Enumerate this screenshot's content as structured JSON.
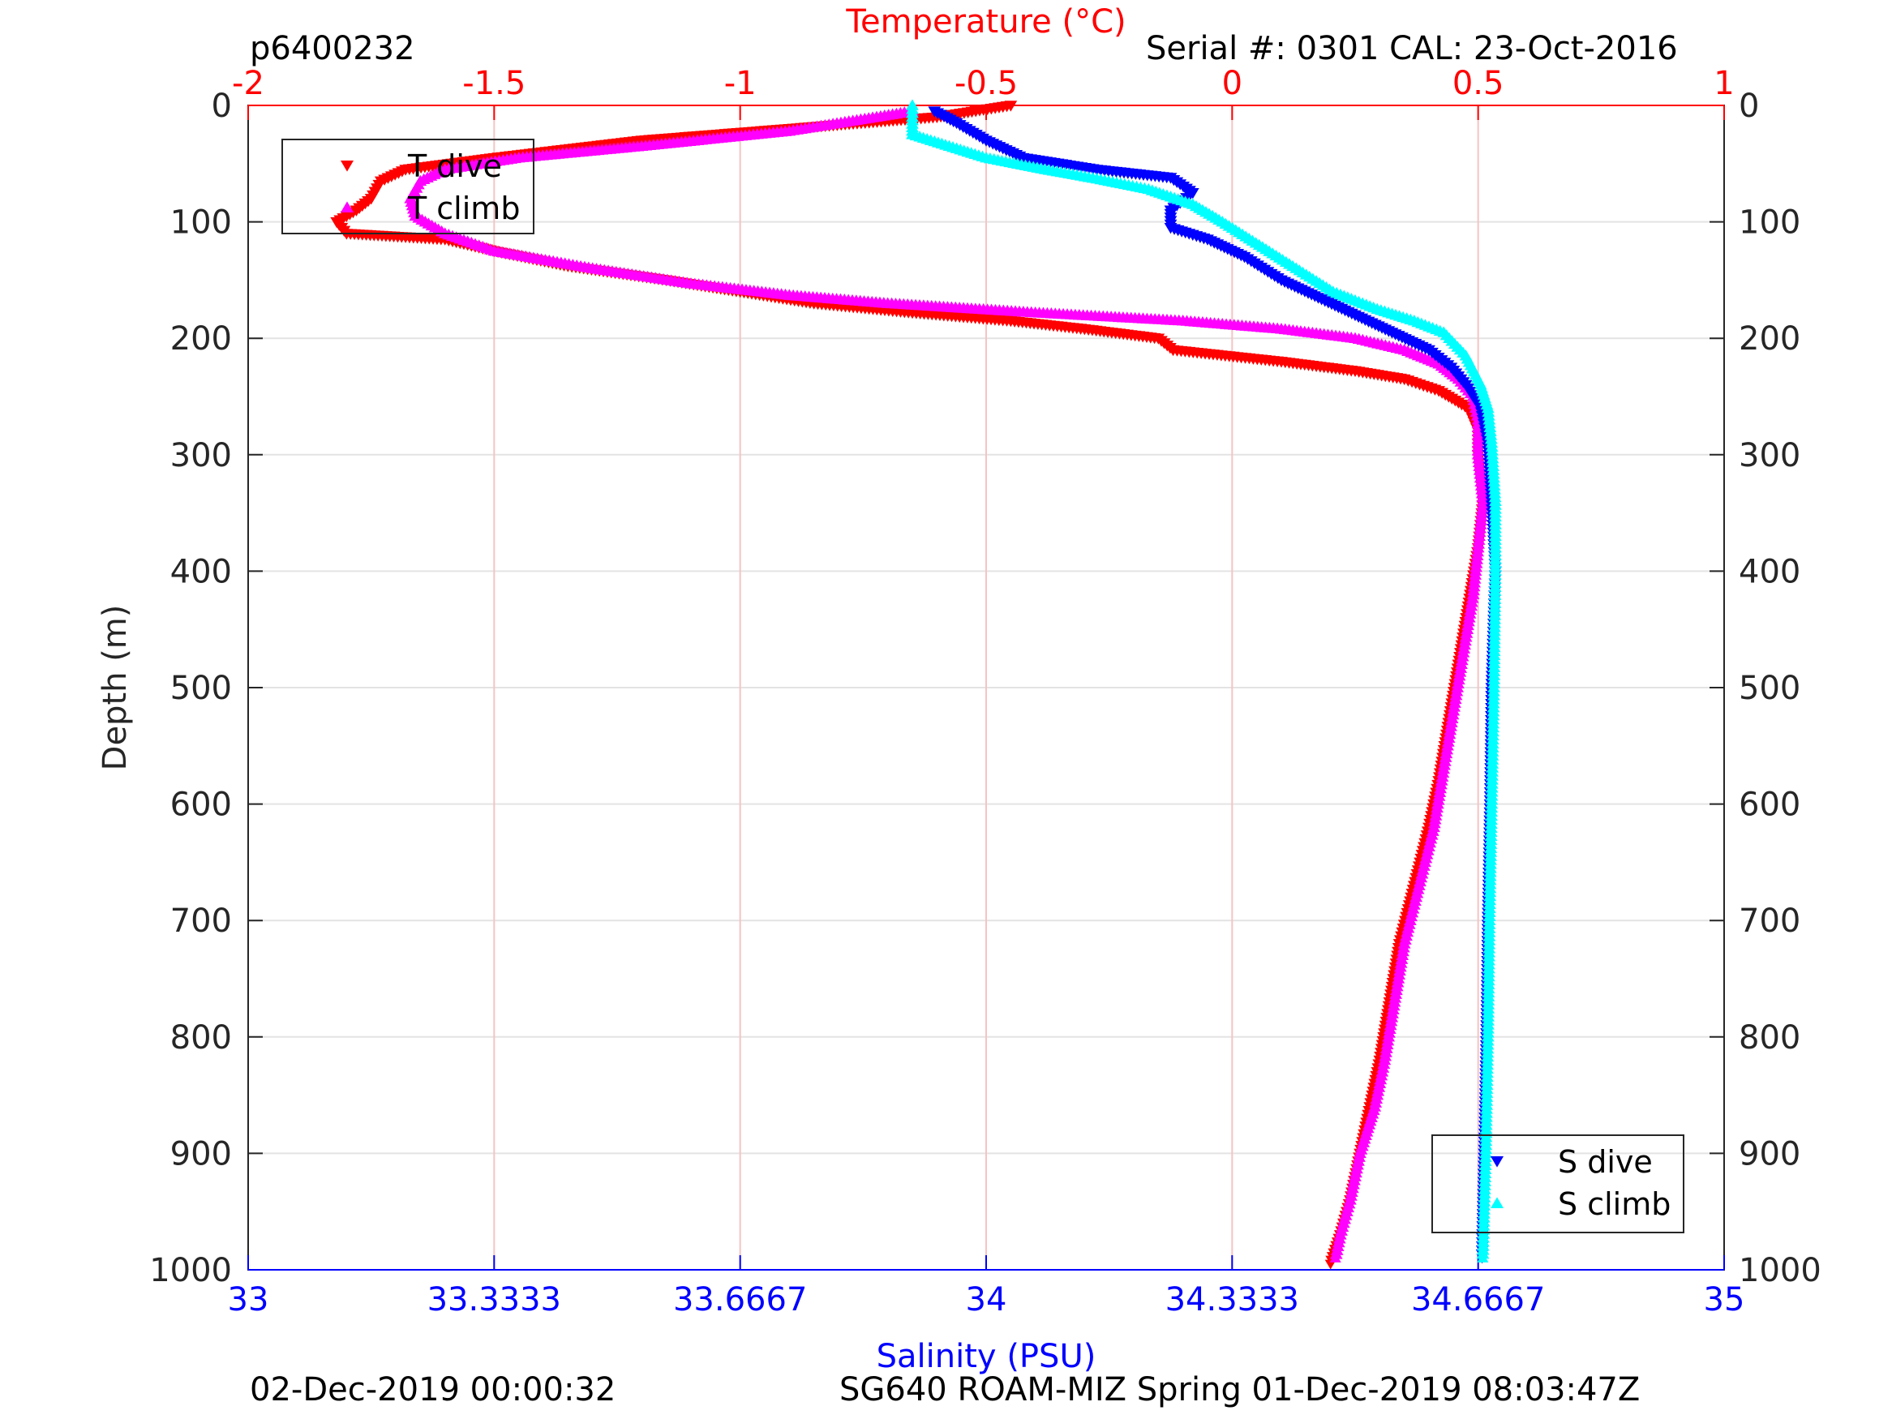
{
  "header": {
    "left_label": "p6400232",
    "right_label": "Serial #: 0301  CAL: 23-Oct-2016"
  },
  "footer": {
    "left_label": "02-Dec-2019 00:00:32",
    "right_label": "SG640 ROAM-MIZ Spring 01-Dec-2019 08:03:47Z"
  },
  "chart_data": {
    "type": "scatter",
    "ylabel": "Depth (m)",
    "ylim": [
      0,
      1000
    ],
    "y_reversed": true,
    "yticks": [
      "0",
      "100",
      "200",
      "300",
      "400",
      "500",
      "600",
      "700",
      "800",
      "900",
      "1000"
    ],
    "ytick_values": [
      0,
      100,
      200,
      300,
      400,
      500,
      600,
      700,
      800,
      900,
      1000
    ],
    "x_top": {
      "label": "Temperature (°C)",
      "color": "#ff0000",
      "lim": [
        -2,
        1
      ],
      "ticks": [
        "-2",
        "-1.5",
        "-1",
        "-0.5",
        "0",
        "0.5",
        "1"
      ],
      "tick_values": [
        -2,
        -1.5,
        -1,
        -0.5,
        0,
        0.5,
        1
      ]
    },
    "x_bottom": {
      "label": "Salinity (PSU)",
      "color": "#0000ff",
      "lim": [
        33,
        35
      ],
      "ticks": [
        "33",
        "33.3333",
        "33.6667",
        "34",
        "34.3333",
        "34.6667",
        "35"
      ],
      "tick_values": [
        33,
        33.3333,
        33.6667,
        34,
        34.3333,
        34.6667,
        35
      ]
    },
    "grid": true,
    "legends": [
      {
        "position": "top-left",
        "entries": [
          "T dive",
          "T climb"
        ]
      },
      {
        "position": "bottom-right",
        "entries": [
          "S dive",
          "S climb"
        ]
      }
    ],
    "series": [
      {
        "name": "T dive",
        "axis": "temperature",
        "color": "#ff0000",
        "marker": "triangle-down",
        "points": [
          [
            -0.45,
            0
          ],
          [
            -0.6,
            10
          ],
          [
            -0.9,
            20
          ],
          [
            -1.2,
            30
          ],
          [
            -1.5,
            45
          ],
          [
            -1.68,
            55
          ],
          [
            -1.73,
            65
          ],
          [
            -1.75,
            80
          ],
          [
            -1.78,
            90
          ],
          [
            -1.82,
            100
          ],
          [
            -1.8,
            110
          ],
          [
            -1.6,
            115
          ],
          [
            -1.5,
            125
          ],
          [
            -1.35,
            138
          ],
          [
            -1.15,
            150
          ],
          [
            -1.0,
            160
          ],
          [
            -0.85,
            170
          ],
          [
            -0.65,
            178
          ],
          [
            -0.45,
            185
          ],
          [
            -0.3,
            192
          ],
          [
            -0.15,
            200
          ],
          [
            -0.12,
            210
          ],
          [
            0.1,
            220
          ],
          [
            0.25,
            228
          ],
          [
            0.35,
            235
          ],
          [
            0.42,
            245
          ],
          [
            0.48,
            260
          ],
          [
            0.5,
            280
          ],
          [
            0.5,
            300
          ],
          [
            0.51,
            340
          ],
          [
            0.5,
            380
          ],
          [
            0.48,
            430
          ],
          [
            0.46,
            480
          ],
          [
            0.44,
            530
          ],
          [
            0.42,
            580
          ],
          [
            0.4,
            620
          ],
          [
            0.37,
            670
          ],
          [
            0.34,
            720
          ],
          [
            0.32,
            770
          ],
          [
            0.3,
            820
          ],
          [
            0.28,
            860
          ],
          [
            0.26,
            900
          ],
          [
            0.24,
            940
          ],
          [
            0.22,
            970
          ],
          [
            0.2,
            995
          ]
        ]
      },
      {
        "name": "T climb",
        "axis": "temperature",
        "color": "#ff00ff",
        "marker": "triangle-up",
        "points": [
          [
            -0.65,
            5
          ],
          [
            -0.9,
            22
          ],
          [
            -1.2,
            35
          ],
          [
            -1.45,
            45
          ],
          [
            -1.6,
            55
          ],
          [
            -1.65,
            65
          ],
          [
            -1.67,
            80
          ],
          [
            -1.66,
            95
          ],
          [
            -1.6,
            110
          ],
          [
            -1.5,
            125
          ],
          [
            -1.3,
            140
          ],
          [
            -1.1,
            153
          ],
          [
            -0.9,
            163
          ],
          [
            -0.7,
            170
          ],
          [
            -0.4,
            178
          ],
          [
            -0.1,
            185
          ],
          [
            0.1,
            192
          ],
          [
            0.25,
            200
          ],
          [
            0.35,
            210
          ],
          [
            0.42,
            222
          ],
          [
            0.46,
            235
          ],
          [
            0.49,
            250
          ],
          [
            0.5,
            270
          ],
          [
            0.5,
            300
          ],
          [
            0.51,
            340
          ],
          [
            0.5,
            380
          ],
          [
            0.49,
            420
          ],
          [
            0.47,
            470
          ],
          [
            0.45,
            520
          ],
          [
            0.43,
            570
          ],
          [
            0.41,
            620
          ],
          [
            0.38,
            670
          ],
          [
            0.35,
            720
          ],
          [
            0.33,
            770
          ],
          [
            0.31,
            820
          ],
          [
            0.29,
            860
          ],
          [
            0.26,
            900
          ],
          [
            0.24,
            940
          ],
          [
            0.22,
            970
          ],
          [
            0.21,
            990
          ]
        ]
      },
      {
        "name": "S dive",
        "axis": "salinity",
        "color": "#0000ff",
        "marker": "triangle-down",
        "points": [
          [
            33.93,
            5
          ],
          [
            33.96,
            15
          ],
          [
            34.0,
            30
          ],
          [
            34.05,
            45
          ],
          [
            34.15,
            55
          ],
          [
            34.25,
            62
          ],
          [
            34.28,
            75
          ],
          [
            34.25,
            90
          ],
          [
            34.25,
            105
          ],
          [
            34.3,
            115
          ],
          [
            34.35,
            130
          ],
          [
            34.4,
            150
          ],
          [
            34.45,
            165
          ],
          [
            34.5,
            180
          ],
          [
            34.55,
            195
          ],
          [
            34.6,
            210
          ],
          [
            34.63,
            225
          ],
          [
            34.65,
            240
          ],
          [
            34.67,
            260
          ],
          [
            34.68,
            290
          ],
          [
            34.685,
            340
          ],
          [
            34.69,
            400
          ],
          [
            34.685,
            500
          ],
          [
            34.683,
            600
          ],
          [
            34.68,
            700
          ],
          [
            34.678,
            800
          ],
          [
            34.675,
            900
          ],
          [
            34.672,
            990
          ]
        ]
      },
      {
        "name": "S climb",
        "axis": "salinity",
        "color": "#00ffff",
        "marker": "triangle-up",
        "points": [
          [
            33.9,
            0
          ],
          [
            33.9,
            10
          ],
          [
            33.9,
            25
          ],
          [
            33.95,
            35
          ],
          [
            34.0,
            45
          ],
          [
            34.08,
            55
          ],
          [
            34.15,
            63
          ],
          [
            34.22,
            72
          ],
          [
            34.28,
            85
          ],
          [
            34.32,
            100
          ],
          [
            34.37,
            120
          ],
          [
            34.42,
            140
          ],
          [
            34.47,
            160
          ],
          [
            34.53,
            175
          ],
          [
            34.58,
            185
          ],
          [
            34.62,
            195
          ],
          [
            34.65,
            215
          ],
          [
            34.67,
            240
          ],
          [
            34.68,
            260
          ],
          [
            34.685,
            290
          ],
          [
            34.69,
            340
          ],
          [
            34.69,
            400
          ],
          [
            34.688,
            500
          ],
          [
            34.685,
            600
          ],
          [
            34.682,
            700
          ],
          [
            34.68,
            800
          ],
          [
            34.677,
            900
          ],
          [
            34.673,
            990
          ]
        ]
      }
    ]
  }
}
